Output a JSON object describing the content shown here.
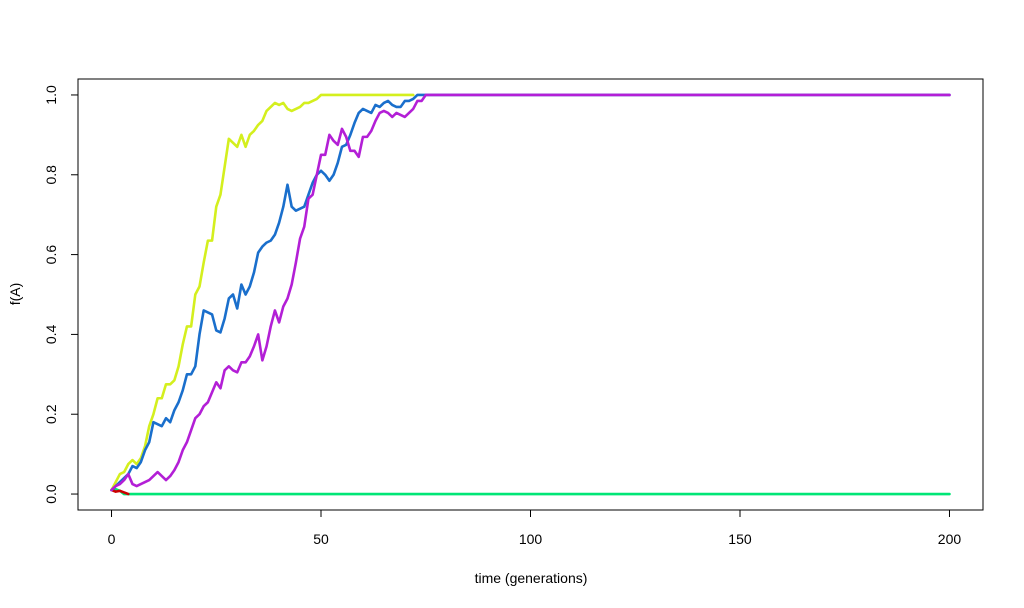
{
  "chart_data": {
    "type": "line",
    "title": "",
    "xlabel": "time (generations)",
    "ylabel": "f(A)",
    "xlim": [
      -8,
      208
    ],
    "ylim": [
      -0.04,
      1.04
    ],
    "x_ticks": [
      0,
      50,
      100,
      150,
      200
    ],
    "x_tick_labels": [
      "0",
      "50",
      "100",
      "150",
      "200"
    ],
    "y_ticks": [
      0.0,
      0.2,
      0.4,
      0.6,
      0.8,
      1.0
    ],
    "y_tick_labels": [
      "0.0",
      "0.2",
      "0.4",
      "0.6",
      "0.8",
      "1.0"
    ],
    "grid": false,
    "legend": "none",
    "series": [
      {
        "color": "#00e676",
        "x": [
          0,
          1,
          2,
          3,
          200
        ],
        "y": [
          0.01,
          0.012,
          0.008,
          0.0,
          0.0
        ]
      },
      {
        "color": "#cc0000",
        "x": [
          0,
          1,
          2,
          3,
          4
        ],
        "y": [
          0.01,
          0.006,
          0.008,
          0.004,
          0.0
        ]
      },
      {
        "color": "#d4ef1e",
        "x": [
          0,
          1,
          2,
          3,
          4,
          5,
          6,
          7,
          8,
          9,
          10,
          11,
          12,
          13,
          14,
          15,
          16,
          17,
          18,
          19,
          20,
          21,
          22,
          23,
          24,
          25,
          26,
          27,
          28,
          29,
          30,
          31,
          32,
          33,
          34,
          35,
          36,
          37,
          38,
          39,
          40,
          41,
          42,
          43,
          44,
          45,
          46,
          47,
          48,
          49,
          50,
          51,
          52,
          53,
          55,
          60,
          65,
          70,
          72
        ],
        "y": [
          0.01,
          0.03,
          0.05,
          0.055,
          0.075,
          0.085,
          0.075,
          0.09,
          0.12,
          0.17,
          0.2,
          0.24,
          0.24,
          0.275,
          0.275,
          0.285,
          0.32,
          0.375,
          0.42,
          0.42,
          0.5,
          0.52,
          0.58,
          0.635,
          0.635,
          0.72,
          0.75,
          0.82,
          0.89,
          0.88,
          0.87,
          0.9,
          0.87,
          0.9,
          0.91,
          0.925,
          0.935,
          0.96,
          0.97,
          0.98,
          0.975,
          0.98,
          0.965,
          0.96,
          0.965,
          0.97,
          0.98,
          0.98,
          0.985,
          0.99,
          1.0,
          1.0,
          1.0,
          1.0,
          1.0,
          1.0,
          1.0,
          1.0,
          1.0
        ]
      },
      {
        "color": "#1a6fcc",
        "x": [
          0,
          1,
          2,
          3,
          4,
          5,
          6,
          7,
          8,
          9,
          10,
          11,
          12,
          13,
          14,
          15,
          16,
          17,
          18,
          19,
          20,
          21,
          22,
          23,
          24,
          25,
          26,
          27,
          28,
          29,
          30,
          31,
          32,
          33,
          34,
          35,
          36,
          37,
          38,
          39,
          40,
          41,
          42,
          43,
          44,
          45,
          46,
          47,
          48,
          49,
          50,
          51,
          52,
          53,
          54,
          55,
          56,
          57,
          58,
          59,
          60,
          61,
          62,
          63,
          64,
          65,
          66,
          67,
          68,
          69,
          70,
          71,
          72,
          73,
          74,
          75,
          200
        ],
        "y": [
          0.01,
          0.02,
          0.03,
          0.04,
          0.05,
          0.07,
          0.065,
          0.08,
          0.11,
          0.13,
          0.18,
          0.175,
          0.17,
          0.19,
          0.18,
          0.21,
          0.23,
          0.26,
          0.3,
          0.3,
          0.32,
          0.4,
          0.46,
          0.455,
          0.45,
          0.41,
          0.405,
          0.44,
          0.49,
          0.5,
          0.465,
          0.525,
          0.5,
          0.52,
          0.555,
          0.605,
          0.62,
          0.63,
          0.635,
          0.65,
          0.68,
          0.72,
          0.775,
          0.72,
          0.71,
          0.715,
          0.72,
          0.75,
          0.78,
          0.8,
          0.81,
          0.8,
          0.785,
          0.8,
          0.83,
          0.87,
          0.875,
          0.9,
          0.93,
          0.955,
          0.965,
          0.96,
          0.955,
          0.975,
          0.97,
          0.98,
          0.985,
          0.975,
          0.97,
          0.97,
          0.985,
          0.985,
          0.99,
          1.0,
          1.0,
          1.0,
          1.0
        ]
      },
      {
        "color": "#b31fd6",
        "x": [
          0,
          1,
          2,
          3,
          4,
          5,
          6,
          7,
          8,
          9,
          10,
          11,
          12,
          13,
          14,
          15,
          16,
          17,
          18,
          19,
          20,
          21,
          22,
          23,
          24,
          25,
          26,
          27,
          28,
          29,
          30,
          31,
          32,
          33,
          34,
          35,
          36,
          37,
          38,
          39,
          40,
          41,
          42,
          43,
          44,
          45,
          46,
          47,
          48,
          49,
          50,
          51,
          52,
          53,
          54,
          55,
          56,
          57,
          58,
          59,
          60,
          61,
          62,
          63,
          64,
          65,
          66,
          67,
          68,
          69,
          70,
          71,
          72,
          73,
          74,
          75,
          200
        ],
        "y": [
          0.01,
          0.02,
          0.025,
          0.035,
          0.05,
          0.025,
          0.02,
          0.025,
          0.03,
          0.035,
          0.045,
          0.055,
          0.045,
          0.035,
          0.045,
          0.06,
          0.08,
          0.11,
          0.13,
          0.16,
          0.19,
          0.2,
          0.22,
          0.23,
          0.255,
          0.28,
          0.265,
          0.31,
          0.32,
          0.31,
          0.305,
          0.33,
          0.33,
          0.345,
          0.37,
          0.4,
          0.335,
          0.37,
          0.42,
          0.46,
          0.43,
          0.47,
          0.49,
          0.525,
          0.58,
          0.64,
          0.67,
          0.74,
          0.75,
          0.8,
          0.85,
          0.85,
          0.9,
          0.885,
          0.875,
          0.915,
          0.895,
          0.86,
          0.86,
          0.845,
          0.895,
          0.895,
          0.91,
          0.935,
          0.955,
          0.96,
          0.955,
          0.945,
          0.955,
          0.95,
          0.945,
          0.955,
          0.965,
          0.985,
          0.985,
          1.0,
          1.0
        ]
      }
    ]
  }
}
